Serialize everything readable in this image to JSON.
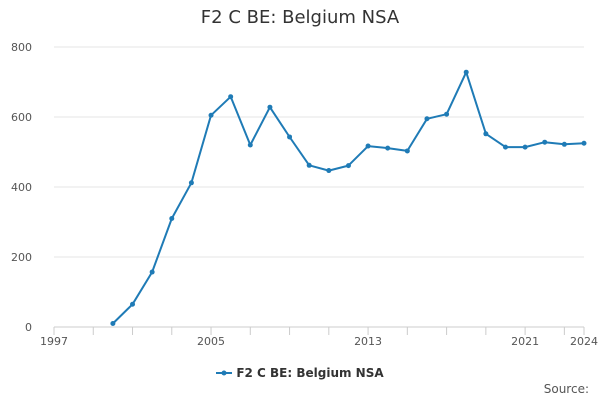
{
  "chart_data": {
    "type": "line",
    "title": "F2 C BE: Belgium NSA",
    "xlabel": "",
    "ylabel": "",
    "xlim": [
      1997,
      2024
    ],
    "ylim": [
      0,
      800
    ],
    "x_ticks": [
      1997,
      2005,
      2013,
      2021,
      2024
    ],
    "y_ticks": [
      0,
      200,
      400,
      600,
      800
    ],
    "grid": "horizontal",
    "legend": "bottom",
    "series": [
      {
        "name": "F2 C BE: Belgium NSA",
        "color": "#1f7bb6",
        "x": [
          2000,
          2001,
          2002,
          2003,
          2004,
          2005,
          2006,
          2007,
          2008,
          2009,
          2010,
          2011,
          2012,
          2013,
          2014,
          2015,
          2016,
          2017,
          2018,
          2019,
          2020,
          2021,
          2022,
          2023,
          2024
        ],
        "y": [
          10,
          65,
          157,
          310,
          412,
          605,
          658,
          520,
          628,
          543,
          462,
          447,
          461,
          517,
          511,
          503,
          595,
          608,
          728,
          552,
          514,
          514,
          528,
          522,
          525
        ]
      }
    ]
  },
  "source_label": "Source:"
}
